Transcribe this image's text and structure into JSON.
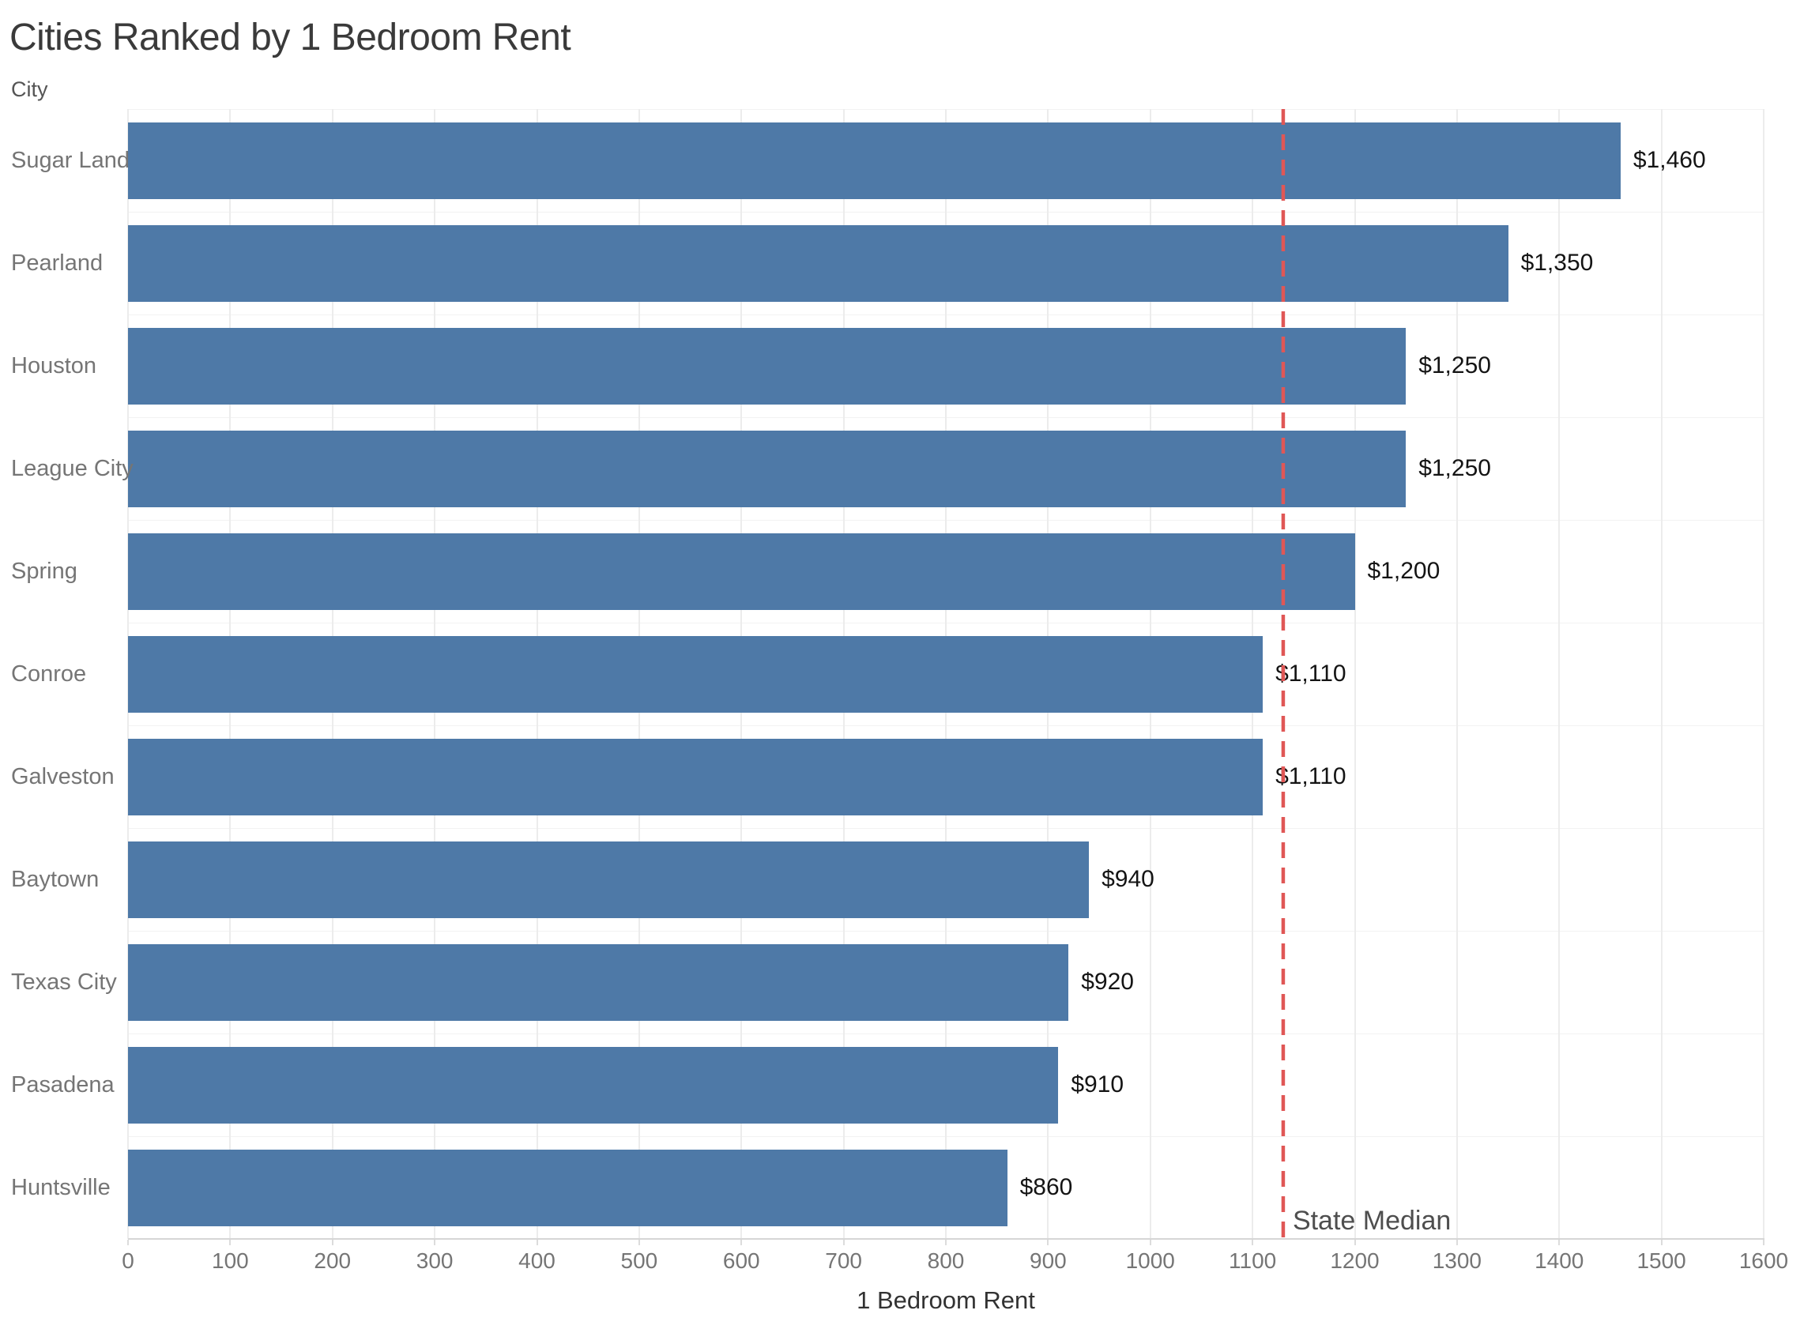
{
  "chart_data": {
    "type": "bar",
    "orientation": "horizontal",
    "title": "Cities Ranked by 1 Bedroom Rent",
    "y_axis_header": "City",
    "xlabel": "1 Bedroom Rent",
    "xlim": [
      0,
      1600
    ],
    "xticks": [
      0,
      100,
      200,
      300,
      400,
      500,
      600,
      700,
      800,
      900,
      1000,
      1100,
      1200,
      1300,
      1400,
      1500,
      1600
    ],
    "grid": "vertical",
    "categories": [
      "Sugar Land",
      "Pearland",
      "Houston",
      "League City",
      "Spring",
      "Conroe",
      "Galveston",
      "Baytown",
      "Texas City",
      "Pasadena",
      "Huntsville"
    ],
    "values": [
      1460,
      1350,
      1250,
      1250,
      1200,
      1110,
      1110,
      940,
      920,
      910,
      860
    ],
    "value_labels": [
      "$1,460",
      "$1,350",
      "$1,250",
      "$1,250",
      "$1,200",
      "$1,110",
      "$1,110",
      "$940",
      "$920",
      "$910",
      "$860"
    ],
    "reference_line": {
      "label": "State Median",
      "value": 1130,
      "style": "dashed"
    },
    "colors": {
      "bar": "#4e79a7",
      "reference_line": "#e05756",
      "gridline": "#ececec",
      "row_separator": "#f2f2f2",
      "axis_line": "#d6d6d6",
      "tick_label": "#757575",
      "category_label": "#757575",
      "value_label": "#141414",
      "title": "#3a3a3a",
      "axis_title": "#323232",
      "reference_label": "#4e4e4e",
      "background": "#ffffff"
    }
  }
}
